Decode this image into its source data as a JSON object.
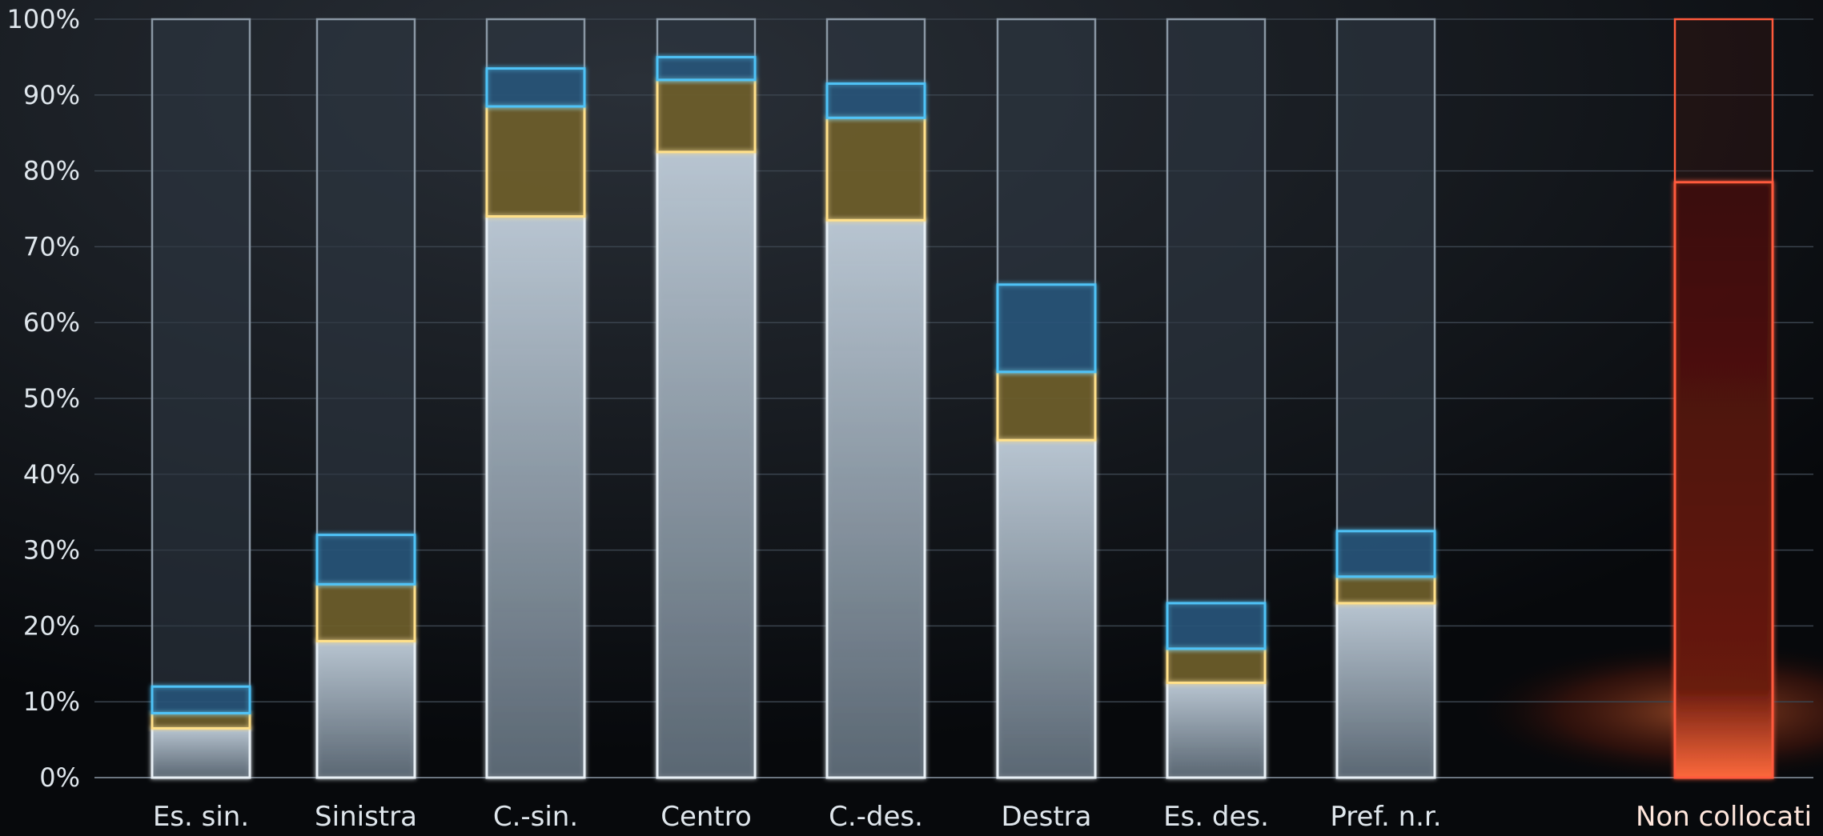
{
  "chart_data": {
    "type": "bar",
    "stacked": true,
    "categories": [
      "Es. sin.",
      "Sinistra",
      "C.-sin.",
      "Centro",
      "C.-des.",
      "Destra",
      "Es. des.",
      "Pref. n.r.",
      "Non collocati"
    ],
    "series": [
      {
        "values": [
          6.5,
          18,
          74,
          82.5,
          73.5,
          44.5,
          12.5,
          23,
          0
        ]
      },
      {
        "values": [
          2,
          7.5,
          14.5,
          9.5,
          13.5,
          9,
          4.5,
          3.5,
          0
        ]
      },
      {
        "values": [
          3.5,
          6.5,
          5,
          3,
          4.5,
          11.5,
          6,
          6,
          0
        ]
      },
      {
        "values": [
          0,
          0,
          0,
          0,
          0,
          0,
          0,
          0,
          78.5
        ]
      }
    ],
    "ylim": [
      0,
      100
    ],
    "yticks": [
      "0%",
      "10%",
      "20%",
      "30%",
      "40%",
      "50%",
      "60%",
      "70%",
      "80%",
      "90%",
      "100%"
    ],
    "grid": true,
    "legend": "none",
    "colors": {
      "base": "#c9d6e2",
      "yellow": "#ffe08a",
      "blue": "#4fc3f7",
      "red": "#ff5a3c",
      "track": "#2c3640",
      "grid": "#3a434d",
      "text": "#dfe6ec"
    }
  }
}
